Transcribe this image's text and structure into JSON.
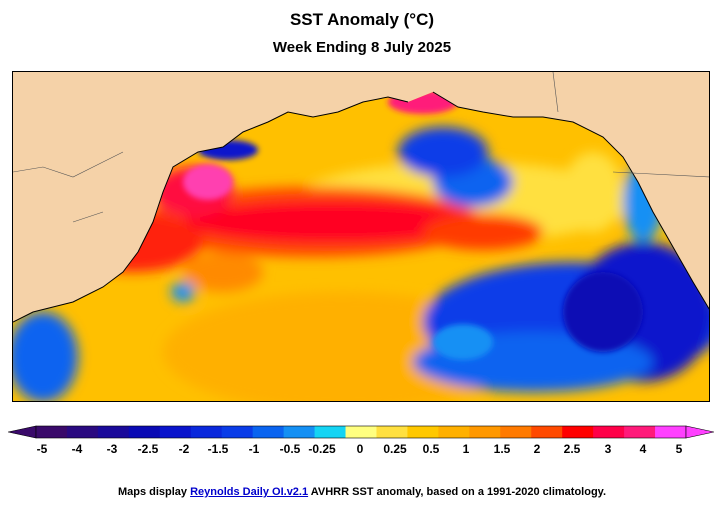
{
  "title": "SST Anomaly (°C)",
  "subtitle": "Week Ending 8 July 2025",
  "colorbar": {
    "labels": [
      "-5",
      "-4",
      "-3",
      "-2.5",
      "-2",
      "-1.5",
      "-1",
      "-0.5",
      "-0.25",
      "0",
      "0.25",
      "0.5",
      "1",
      "1.5",
      "2",
      "2.5",
      "3",
      "4",
      "5"
    ],
    "colors": [
      "#3a0a6a",
      "#2a0a80",
      "#1a0a9a",
      "#0a0ab4",
      "#0a14cc",
      "#0a28dc",
      "#0a3ce8",
      "#0a64f0",
      "#1490f4",
      "#14d4f4",
      "#ffff80",
      "#ffe040",
      "#ffc800",
      "#ffb000",
      "#ff9800",
      "#ff7a00",
      "#ff4a00",
      "#ff0000",
      "#ff0048",
      "#ff1a7a",
      "#ff40ff"
    ],
    "min_arrow_color": "#3a0a6a",
    "max_arrow_color": "#ff40ff"
  },
  "map_colors": {
    "land": "#f5d2a8",
    "base_ocean": "#ffc800",
    "coast": "#000000"
  },
  "footer": {
    "prefix": "Maps display ",
    "link": "Reynolds Daily OI.v2.1",
    "suffix": " AVHRR SST anomaly, based on a 1991-2020 climatology."
  }
}
